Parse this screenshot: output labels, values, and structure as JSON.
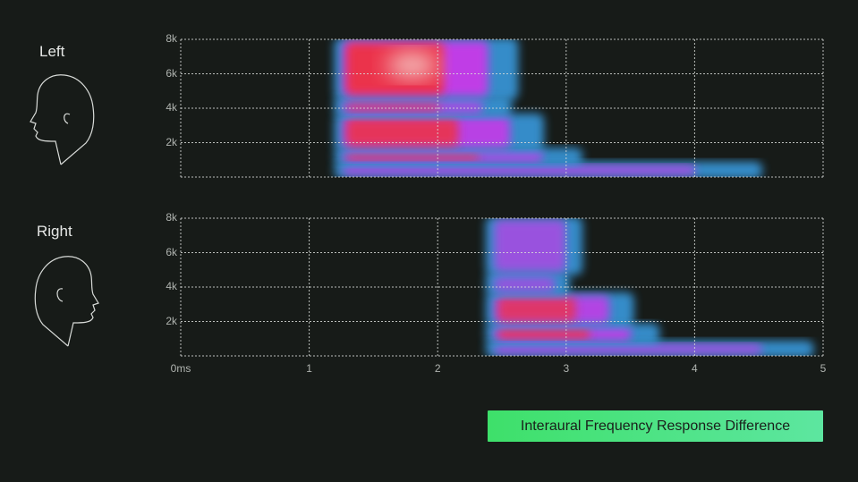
{
  "channels": [
    {
      "label": "Left"
    },
    {
      "label": "Right"
    }
  ],
  "legend": {
    "label": "Interaural Frequency Response Difference",
    "color": "#4be37d"
  },
  "chart_data": [
    {
      "type": "heatmap",
      "title": "",
      "channel": "Left",
      "xlabel": "",
      "ylabel": "",
      "x_ticks": [
        "0ms",
        "1",
        "2",
        "3",
        "4",
        "5"
      ],
      "y_ticks": [
        "2k",
        "4k",
        "6k",
        "8k"
      ],
      "xlim": [
        0,
        5
      ],
      "ylim": [
        0,
        8000
      ],
      "grid": true,
      "onset_ms": 1.22,
      "bands": [
        {
          "freq_range": [
            0,
            800
          ],
          "end_ms": 4.5,
          "intensity": 0.55
        },
        {
          "freq_range": [
            800,
            1600
          ],
          "end_ms": 3.1,
          "intensity": 0.85
        },
        {
          "freq_range": [
            1600,
            3600
          ],
          "end_ms": 2.8,
          "intensity": 0.9
        },
        {
          "freq_range": [
            3600,
            4600
          ],
          "end_ms": 2.55,
          "intensity": 0.6
        },
        {
          "freq_range": [
            4600,
            8000
          ],
          "end_ms": 2.6,
          "intensity": 1.0
        }
      ],
      "peak": {
        "x_ms": 1.8,
        "freq": 6500
      }
    },
    {
      "type": "heatmap",
      "title": "",
      "channel": "Right",
      "xlabel": "",
      "ylabel": "",
      "x_ticks": [
        "0ms",
        "1",
        "2",
        "3",
        "4",
        "5"
      ],
      "y_ticks": [
        "2k",
        "4k",
        "6k",
        "8k"
      ],
      "xlim": [
        0,
        5
      ],
      "ylim": [
        0,
        8000
      ],
      "grid": true,
      "onset_ms": 2.4,
      "bands": [
        {
          "freq_range": [
            0,
            800
          ],
          "end_ms": 4.9,
          "intensity": 0.5
        },
        {
          "freq_range": [
            800,
            1800
          ],
          "end_ms": 3.7,
          "intensity": 0.9
        },
        {
          "freq_range": [
            1800,
            3600
          ],
          "end_ms": 3.5,
          "intensity": 0.8
        },
        {
          "freq_range": [
            3600,
            4800
          ],
          "end_ms": 3.0,
          "intensity": 0.35
        },
        {
          "freq_range": [
            4800,
            8000
          ],
          "end_ms": 3.1,
          "intensity": 0.45
        }
      ],
      "peak": {
        "x_ms": 2.9,
        "freq": 1400
      }
    }
  ],
  "colors": {
    "background": "#171b18",
    "grid": "#d8dbd8",
    "low": "#3aa0e8",
    "mid": "#c03ee6",
    "high": "#f0303a",
    "peak": "#f5d8d0"
  }
}
